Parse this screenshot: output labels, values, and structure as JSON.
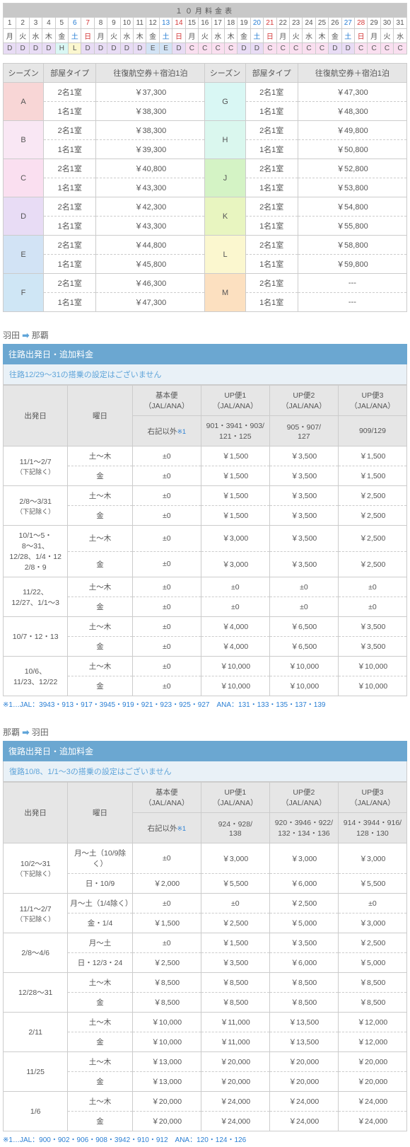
{
  "calendar": {
    "title": "１０月料金表",
    "days": [
      "1",
      "2",
      "3",
      "4",
      "5",
      "6",
      "7",
      "8",
      "9",
      "10",
      "11",
      "12",
      "13",
      "14",
      "15",
      "16",
      "17",
      "18",
      "19",
      "20",
      "21",
      "22",
      "23",
      "24",
      "25",
      "26",
      "27",
      "28",
      "29",
      "30",
      "31"
    ],
    "dow": [
      "月",
      "火",
      "水",
      "木",
      "金",
      "土",
      "日",
      "月",
      "火",
      "水",
      "木",
      "金",
      "土",
      "日",
      "月",
      "火",
      "水",
      "木",
      "金",
      "土",
      "日",
      "月",
      "火",
      "水",
      "木",
      "金",
      "土",
      "日",
      "月",
      "火",
      "水"
    ],
    "dowClass": [
      "",
      "",
      "",
      "",
      "",
      "sat",
      "sun",
      "",
      "",
      "",
      "",
      "",
      "sat",
      "sun",
      "",
      "",
      "",
      "",
      "",
      "sat",
      "sun",
      "",
      "",
      "",
      "",
      "",
      "sat",
      "sun",
      "",
      "",
      ""
    ],
    "codes": [
      "D",
      "D",
      "D",
      "D",
      "H",
      "L",
      "D",
      "D",
      "D",
      "D",
      "D",
      "E",
      "E",
      "D",
      "C",
      "C",
      "C",
      "C",
      "D",
      "D",
      "C",
      "C",
      "C",
      "C",
      "C",
      "D",
      "D",
      "C",
      "C",
      "C",
      "C"
    ]
  },
  "priceHdr": {
    "season": "シーズン",
    "room": "部屋タイプ",
    "pkg": "往復航空券＋宿泊1泊"
  },
  "roomLabels": {
    "twin": "2名1室",
    "single": "1名1室"
  },
  "seasons": [
    {
      "c": "A",
      "cl": "season-A-bg",
      "t": "￥37,300",
      "s": "￥38,300"
    },
    {
      "c": "B",
      "cl": "season-B-bg",
      "t": "￥38,300",
      "s": "￥39,300"
    },
    {
      "c": "C",
      "cl": "season-C-bg",
      "t": "￥40,800",
      "s": "￥43,300"
    },
    {
      "c": "D",
      "cl": "season-D-bg",
      "t": "￥42,300",
      "s": "￥43,300"
    },
    {
      "c": "E",
      "cl": "season-E-bg",
      "t": "￥44,800",
      "s": "￥45,800"
    },
    {
      "c": "F",
      "cl": "season-F-bg",
      "t": "￥46,300",
      "s": "￥47,300"
    },
    {
      "c": "G",
      "cl": "season-G-bg",
      "t": "￥47,300",
      "s": "￥48,300"
    },
    {
      "c": "H",
      "cl": "season-H-bg",
      "t": "￥49,800",
      "s": "￥50,800"
    },
    {
      "c": "J",
      "cl": "season-J-bg",
      "t": "￥52,800",
      "s": "￥53,800"
    },
    {
      "c": "K",
      "cl": "season-K-bg",
      "t": "￥54,800",
      "s": "￥55,800"
    },
    {
      "c": "L",
      "cl": "season-L-bg",
      "t": "￥58,800",
      "s": "￥59,800"
    },
    {
      "c": "M",
      "cl": "season-M-bg",
      "t": "---",
      "s": "---"
    }
  ],
  "route1": {
    "from": "羽田",
    "to": "那覇",
    "secTitle": "往路出発日・追加料金",
    "note": "往路12/29～31の搭乗の設定はございません",
    "hdr": {
      "dep": "出発日",
      "dow": "曜日",
      "base": "基本便\n（JAL/ANA）",
      "up1": "UP便1\n（JAL/ANA）",
      "up2": "UP便2\n（JAL/ANA）",
      "up3": "UP便3\n（JAL/ANA）"
    },
    "flightRow": {
      "base": "右記以外",
      "ast": "※1",
      "up1": "901・3941・903/\n121・125",
      "up2": "905・907/\n127",
      "up3": "909/129"
    },
    "rows": [
      {
        "dep": "11/1～2/7",
        "sub": "（下記除く）",
        "d1": "土～木",
        "d2": "金",
        "v": [
          [
            "±0",
            "￥1,500",
            "￥3,500",
            "￥1,500"
          ],
          [
            "±0",
            "￥1,500",
            "￥3,500",
            "￥1,500"
          ]
        ]
      },
      {
        "dep": "2/8～3/31",
        "sub": "（下記除く）",
        "d1": "土～木",
        "d2": "金",
        "v": [
          [
            "±0",
            "￥1,500",
            "￥3,500",
            "￥2,500"
          ],
          [
            "±0",
            "￥1,500",
            "￥3,500",
            "￥2,500"
          ]
        ]
      },
      {
        "dep": "10/1～5・\n8～31、\n12/28、1/4・12\n2/8・9",
        "sub": "",
        "d1": "土～木",
        "d2": "金",
        "v": [
          [
            "±0",
            "￥3,000",
            "￥3,500",
            "￥2,500"
          ],
          [
            "±0",
            "￥3,000",
            "￥3,500",
            "￥2,500"
          ]
        ]
      },
      {
        "dep": "11/22、\n12/27、1/1～3",
        "sub": "",
        "d1": "土～木",
        "d2": "金",
        "v": [
          [
            "±0",
            "±0",
            "±0",
            "±0"
          ],
          [
            "±0",
            "±0",
            "±0",
            "±0"
          ]
        ]
      },
      {
        "dep": "10/7・12・13",
        "sub": "",
        "d1": "土～木",
        "d2": "金",
        "v": [
          [
            "±0",
            "￥4,000",
            "￥6,500",
            "￥3,500"
          ],
          [
            "±0",
            "￥4,000",
            "￥6,500",
            "￥3,500"
          ]
        ]
      },
      {
        "dep": "10/6、\n11/23、12/22",
        "sub": "",
        "d1": "土～木",
        "d2": "金",
        "v": [
          [
            "±0",
            "￥10,000",
            "￥10,000",
            "￥10,000"
          ],
          [
            "±0",
            "￥10,000",
            "￥10,000",
            "￥10,000"
          ]
        ]
      }
    ],
    "foot": "※1…JAL：3943・913・917・3945・919・921・923・925・927　ANA：131・133・135・137・139"
  },
  "route2": {
    "from": "那覇",
    "to": "羽田",
    "secTitle": "復路出発日・追加料金",
    "note": "復路10/8、1/1～3の搭乗の設定はございません",
    "hdr": {
      "dep": "出発日",
      "dow": "曜日",
      "base": "基本便\n（JAL/ANA）",
      "up1": "UP便1\n（JAL/ANA）",
      "up2": "UP便2\n（JAL/ANA）",
      "up3": "UP便3\n（JAL/ANA）"
    },
    "flightRow": {
      "base": "右記以外",
      "ast": "※1",
      "up1": "924・928/\n138",
      "up2": "920・3946・922/\n132・134・136",
      "up3": "914・3944・916/\n128・130"
    },
    "rows": [
      {
        "dep": "10/2～31",
        "sub": "（下記除く）",
        "d1": "月～土（10/9除く）",
        "d2": "日・10/9",
        "v": [
          [
            "±0",
            "￥3,000",
            "￥3,000",
            "￥3,000"
          ],
          [
            "￥2,000",
            "￥5,500",
            "￥6,000",
            "￥5,500"
          ]
        ]
      },
      {
        "dep": "11/1～2/7",
        "sub": "（下記除く）",
        "d1": "月～土（1/4除く）",
        "d2": "金・1/4",
        "v": [
          [
            "±0",
            "±0",
            "￥2,500",
            "±0"
          ],
          [
            "￥1,500",
            "￥2,500",
            "￥5,000",
            "￥3,000"
          ]
        ]
      },
      {
        "dep": "2/8～4/6",
        "sub": "",
        "d1": "月～土",
        "d2": "日・12/3・24",
        "v": [
          [
            "±0",
            "￥1,500",
            "￥3,500",
            "￥2,500"
          ],
          [
            "￥2,500",
            "￥3,500",
            "￥6,000",
            "￥5,000"
          ]
        ]
      },
      {
        "dep": "12/28～31",
        "sub": "",
        "d1": "土～木",
        "d2": "金",
        "v": [
          [
            "￥8,500",
            "￥8,500",
            "￥8,500",
            "￥8,500"
          ],
          [
            "￥8,500",
            "￥8,500",
            "￥8,500",
            "￥8,500"
          ]
        ]
      },
      {
        "dep": "2/11",
        "sub": "",
        "d1": "土～木",
        "d2": "金",
        "v": [
          [
            "￥10,000",
            "￥11,000",
            "￥13,500",
            "￥12,000"
          ],
          [
            "￥10,000",
            "￥11,000",
            "￥13,500",
            "￥12,000"
          ]
        ]
      },
      {
        "dep": "11/25",
        "sub": "",
        "d1": "土～木",
        "d2": "金",
        "v": [
          [
            "￥13,000",
            "￥20,000",
            "￥20,000",
            "￥20,000"
          ],
          [
            "￥13,000",
            "￥20,000",
            "￥20,000",
            "￥20,000"
          ]
        ]
      },
      {
        "dep": "1/6",
        "sub": "",
        "d1": "土～木",
        "d2": "金",
        "v": [
          [
            "￥20,000",
            "￥24,000",
            "￥24,000",
            "￥24,000"
          ],
          [
            "￥20,000",
            "￥24,000",
            "￥24,000",
            "￥24,000"
          ]
        ]
      }
    ],
    "foot": "※1…JAL：900・902・906・908・3942・910・912　ANA：120・124・126"
  }
}
